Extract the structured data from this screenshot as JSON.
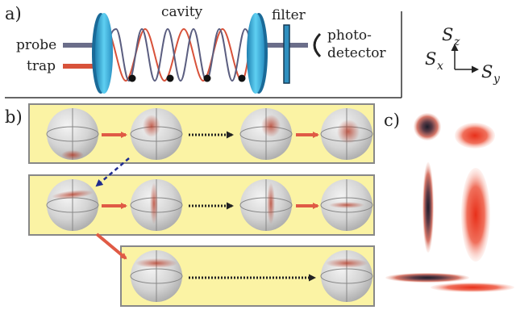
{
  "panel_labels": {
    "a": "a)",
    "b": "b)",
    "c": "c)"
  },
  "setup": {
    "cavity": "cavity",
    "filter": "filter",
    "probe": "probe",
    "trap": "trap",
    "detector_line1": "photo-",
    "detector_line2": "detector"
  },
  "axes": {
    "z_label": "S",
    "z_sub": "z",
    "x_label": "S",
    "x_sub": "x",
    "y_label": "S",
    "y_sub": "y"
  },
  "colors": {
    "probe": "#6b6e8a",
    "trap": "#d8523a",
    "mirror": "#41b7e0",
    "panel_fill": "#fbf3a4",
    "sphere": "#d6d6d6",
    "arrow_red": "#e05a45",
    "arrow_blue": "#1f2c8f"
  }
}
